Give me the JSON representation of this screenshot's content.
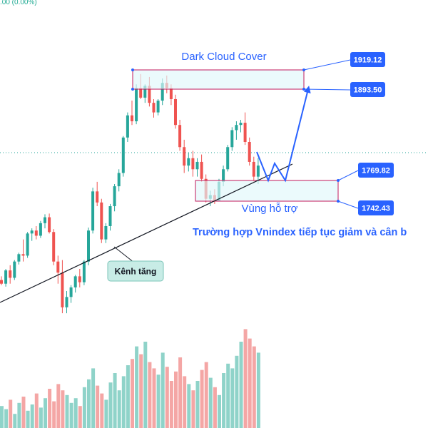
{
  "status": {
    "text": ".00 (0.00%)"
  },
  "annotations": {
    "dark_cloud": "Dark Cloud Cover",
    "support_zone": "Vùng hỗ trợ",
    "scenario": "Trường hợp Vnindex tiếp tục giảm và cân b",
    "channel": "Kênh tăng"
  },
  "price_labels": [
    "1919.12",
    "1893.50",
    "1769.82",
    "1742.43"
  ],
  "colors": {
    "up": "#26a69a",
    "down": "#ef5350",
    "vol_up": "#8fd3c9",
    "vol_down": "#f4a6a5",
    "accent": "#2962ff",
    "zone_fill": "#e0f7fa",
    "zone_border": "#c2185b"
  },
  "chart_data": {
    "type": "candlestick",
    "price_range": [
      1700,
      1950
    ],
    "candles": [
      [
        1635,
        1640,
        1628,
        1630
      ],
      [
        1630,
        1650,
        1626,
        1648
      ],
      [
        1648,
        1655,
        1630,
        1638
      ],
      [
        1638,
        1662,
        1635,
        1660
      ],
      [
        1660,
        1672,
        1656,
        1670
      ],
      [
        1670,
        1690,
        1660,
        1668
      ],
      [
        1668,
        1700,
        1665,
        1698
      ],
      [
        1698,
        1705,
        1688,
        1702
      ],
      [
        1702,
        1708,
        1690,
        1695
      ],
      [
        1695,
        1715,
        1692,
        1712
      ],
      [
        1712,
        1724,
        1705,
        1720
      ],
      [
        1720,
        1725,
        1698,
        1700
      ],
      [
        1700,
        1704,
        1655,
        1660
      ],
      [
        1660,
        1668,
        1630,
        1645
      ],
      [
        1645,
        1662,
        1590,
        1598
      ],
      [
        1598,
        1620,
        1590,
        1612
      ],
      [
        1612,
        1628,
        1604,
        1625
      ],
      [
        1625,
        1642,
        1618,
        1640
      ],
      [
        1640,
        1650,
        1625,
        1632
      ],
      [
        1632,
        1662,
        1628,
        1660
      ],
      [
        1660,
        1706,
        1655,
        1702
      ],
      [
        1702,
        1760,
        1698,
        1755
      ],
      [
        1755,
        1768,
        1735,
        1740
      ],
      [
        1740,
        1745,
        1685,
        1690
      ],
      [
        1690,
        1712,
        1685,
        1708
      ],
      [
        1708,
        1738,
        1702,
        1735
      ],
      [
        1735,
        1765,
        1728,
        1762
      ],
      [
        1762,
        1785,
        1755,
        1780
      ],
      [
        1780,
        1830,
        1775,
        1828
      ],
      [
        1828,
        1862,
        1822,
        1858
      ],
      [
        1858,
        1878,
        1845,
        1850
      ],
      [
        1850,
        1900,
        1846,
        1895
      ],
      [
        1895,
        1914,
        1880,
        1882
      ],
      [
        1882,
        1900,
        1875,
        1898
      ],
      [
        1898,
        1910,
        1870,
        1875
      ],
      [
        1875,
        1880,
        1855,
        1862
      ],
      [
        1862,
        1880,
        1858,
        1878
      ],
      [
        1878,
        1908,
        1872,
        1902
      ],
      [
        1902,
        1912,
        1888,
        1895
      ],
      [
        1895,
        1900,
        1872,
        1880
      ],
      [
        1880,
        1886,
        1840,
        1845
      ],
      [
        1845,
        1852,
        1810,
        1815
      ],
      [
        1815,
        1825,
        1780,
        1790
      ],
      [
        1790,
        1808,
        1782,
        1800
      ],
      [
        1800,
        1810,
        1775,
        1785
      ],
      [
        1785,
        1800,
        1775,
        1795
      ],
      [
        1795,
        1805,
        1768,
        1772
      ],
      [
        1772,
        1778,
        1740,
        1745
      ],
      [
        1745,
        1756,
        1735,
        1750
      ],
      [
        1750,
        1758,
        1738,
        1742
      ],
      [
        1742,
        1772,
        1742,
        1768
      ],
      [
        1768,
        1790,
        1762,
        1785
      ],
      [
        1785,
        1818,
        1782,
        1815
      ],
      [
        1815,
        1842,
        1810,
        1838
      ],
      [
        1838,
        1850,
        1825,
        1845
      ],
      [
        1845,
        1852,
        1835,
        1848
      ],
      [
        1848,
        1862,
        1818,
        1822
      ],
      [
        1822,
        1828,
        1790,
        1795
      ],
      [
        1795,
        1802,
        1768,
        1775
      ],
      [
        1775,
        1800,
        1765,
        1790
      ]
    ],
    "volumes": [
      14,
      12,
      18,
      9,
      16,
      20,
      11,
      15,
      22,
      13,
      19,
      25,
      17,
      28,
      24,
      21,
      16,
      19,
      14,
      26,
      31,
      38,
      27,
      22,
      18,
      29,
      35,
      24,
      33,
      40,
      44,
      52,
      47,
      55,
      42,
      38,
      34,
      48,
      39,
      30,
      36,
      45,
      33,
      28,
      24,
      30,
      37,
      42,
      32,
      26,
      21,
      35,
      41,
      38,
      46,
      55,
      63,
      57,
      52,
      48
    ],
    "vol_up": [
      1,
      1,
      0,
      1,
      1,
      0,
      1,
      1,
      0,
      1,
      1,
      0,
      0,
      0,
      0,
      1,
      1,
      1,
      0,
      1,
      1,
      1,
      0,
      0,
      1,
      1,
      1,
      1,
      1,
      1,
      0,
      1,
      0,
      1,
      0,
      0,
      1,
      1,
      0,
      0,
      0,
      0,
      0,
      1,
      0,
      1,
      0,
      0,
      1,
      0,
      1,
      1,
      1,
      1,
      1,
      1,
      0,
      0,
      0,
      1
    ],
    "drawings": {
      "resistance_zone": [
        1893.5,
        1919.12
      ],
      "support_zone": [
        1742.43,
        1769.82
      ],
      "trendline": "rising"
    }
  }
}
